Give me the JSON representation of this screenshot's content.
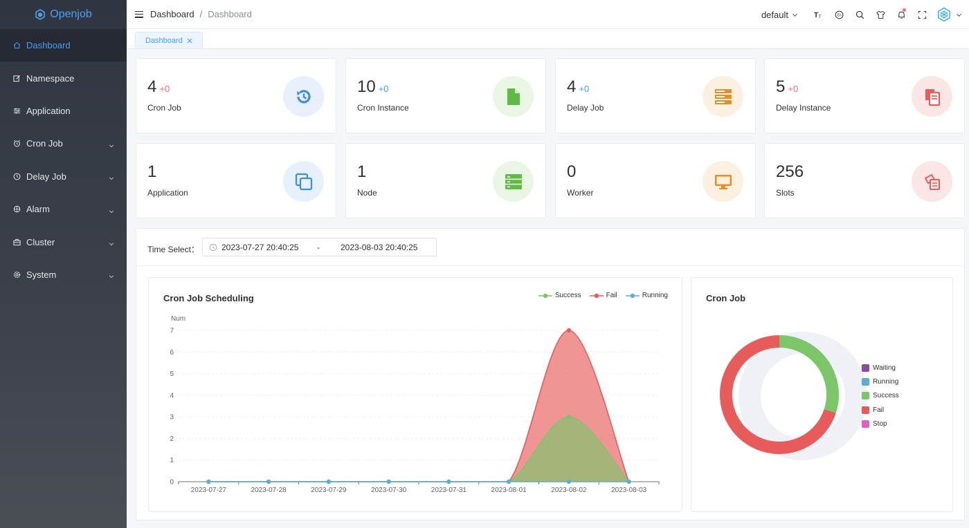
{
  "app": {
    "logo_text": "Openjob"
  },
  "sidebar": {
    "items": [
      {
        "label": "Dashboard",
        "icon": "home-icon",
        "active": true,
        "has_children": false
      },
      {
        "label": "Namespace",
        "icon": "edit-icon",
        "active": false,
        "has_children": false
      },
      {
        "label": "Application",
        "icon": "sliders-icon",
        "active": false,
        "has_children": false
      },
      {
        "label": "Cron Job",
        "icon": "alarm-clock-icon",
        "active": false,
        "has_children": true
      },
      {
        "label": "Delay Job",
        "icon": "clock-icon",
        "active": false,
        "has_children": true
      },
      {
        "label": "Alarm",
        "icon": "crosshair-icon",
        "active": false,
        "has_children": true
      },
      {
        "label": "Cluster",
        "icon": "briefcase-icon",
        "active": false,
        "has_children": true
      },
      {
        "label": "System",
        "icon": "gear-icon",
        "active": false,
        "has_children": true
      }
    ]
  },
  "header": {
    "breadcrumb": [
      "Dashboard",
      "Dashboard"
    ],
    "namespace": "default",
    "icons": [
      "text-size-icon",
      "language-icon",
      "search-icon",
      "theme-shirt-icon",
      "bell-icon",
      "fullscreen-icon"
    ]
  },
  "tags": [
    {
      "label": "Dashboard"
    }
  ],
  "stats": [
    {
      "value": "4",
      "delta": "+0",
      "delta_color": "#f56c6c",
      "label": "Cron Job",
      "icon": "history-icon",
      "circle_bg": "#e6f1fd",
      "icon_color": "#3d8de8"
    },
    {
      "value": "10",
      "delta": "+0",
      "delta_color": "#409eff",
      "label": "Cron Instance",
      "icon": "file-icon",
      "circle_bg": "#e9f6e4",
      "icon_color": "#5fba46"
    },
    {
      "value": "4",
      "delta": "+0",
      "delta_color": "#409eff",
      "label": "Delay Job",
      "icon": "server-stack-icon",
      "circle_bg": "#fcf0e0",
      "icon_color": "#e3902c"
    },
    {
      "value": "5",
      "delta": "+0",
      "delta_color": "#f56c6c",
      "label": "Delay Instance",
      "icon": "copy-files-icon",
      "circle_bg": "#fbe6e6",
      "icon_color": "#ea5c5c"
    },
    {
      "value": "1",
      "delta": "",
      "delta_color": "#409eff",
      "label": "Application",
      "icon": "copy-outline-icon",
      "circle_bg": "#e6f1fd",
      "icon_color": "#3d8de8"
    },
    {
      "value": "1",
      "delta": "",
      "delta_color": "#409eff",
      "label": "Node",
      "icon": "server-icon",
      "circle_bg": "#e9f6e4",
      "icon_color": "#5fba46"
    },
    {
      "value": "0",
      "delta": "",
      "delta_color": "#409eff",
      "label": "Worker",
      "icon": "monitor-icon",
      "circle_bg": "#fcf0e0",
      "icon_color": "#e3902c"
    },
    {
      "value": "256",
      "delta": "",
      "delta_color": "#409eff",
      "label": "Slots",
      "icon": "documents-icon",
      "circle_bg": "#fbe6e6",
      "icon_color": "#ea5c5c"
    }
  ],
  "time_select": {
    "label": "Time Select：",
    "start": "2023-07-27 20:40:25",
    "separator": "-",
    "end": "2023-08-03 20:40:25"
  },
  "chart_data": [
    {
      "type": "area",
      "title": "Cron Job Scheduling",
      "ylabel": "Num",
      "ylim": [
        0,
        7
      ],
      "yticks": [
        0,
        1,
        2,
        3,
        4,
        5,
        6,
        7
      ],
      "categories": [
        "2023-07-27",
        "2023-07-28",
        "2023-07-29",
        "2023-07-30",
        "2023-07-31",
        "2023-08-01",
        "2023-08-02",
        "2023-08-03"
      ],
      "series": [
        {
          "name": "Success",
          "color": "#7cc66a",
          "values": [
            0,
            0,
            0,
            0,
            0,
            0,
            3,
            0
          ]
        },
        {
          "name": "Fail",
          "color": "#e85b5b",
          "values": [
            0,
            0,
            0,
            0,
            0,
            0,
            7,
            0
          ]
        },
        {
          "name": "Running",
          "color": "#5aaed6",
          "values": [
            0,
            0,
            0,
            0,
            0,
            0,
            0,
            0
          ]
        }
      ],
      "legend_position": "top-right",
      "grid": true
    },
    {
      "type": "pie",
      "title": "Cron Job",
      "donut": true,
      "slices": [
        {
          "name": "Waiting",
          "color": "#8a4d9e",
          "value": 0
        },
        {
          "name": "Running",
          "color": "#5aaed6",
          "value": 0
        },
        {
          "name": "Success",
          "color": "#7cc66a",
          "value": 3
        },
        {
          "name": "Fail",
          "color": "#e85b5b",
          "value": 7
        },
        {
          "name": "Stop",
          "color": "#e361c6",
          "value": 0
        }
      ],
      "legend_position": "right"
    }
  ]
}
